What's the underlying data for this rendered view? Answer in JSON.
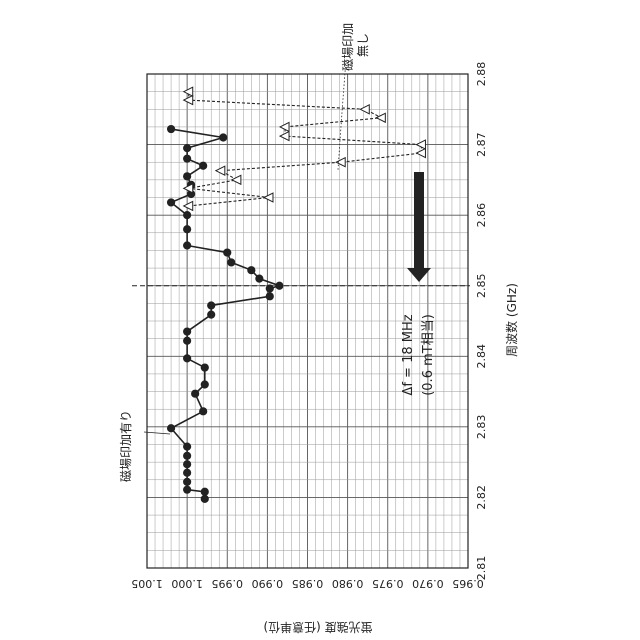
{
  "chart_data": {
    "type": "scatter",
    "xlabel": "周波数 (GHz)",
    "ylabel": "蛍光強度 (任意単位)",
    "xlim": [
      2.81,
      2.88
    ],
    "ylim": [
      0.965,
      1.005
    ],
    "x_ticks": [
      "2.81",
      "2.82",
      "2.83",
      "2.84",
      "2.85",
      "2.86",
      "2.87",
      "2.88"
    ],
    "y_ticks": [
      "1.005",
      "1.000",
      "0.995",
      "0.990",
      "0.985",
      "0.980",
      "0.975",
      "0.970",
      "0.965"
    ],
    "x_tick_values": [
      2.81,
      2.82,
      2.83,
      2.84,
      2.85,
      2.86,
      2.87,
      2.88
    ],
    "y_tick_values": [
      1.005,
      1.0,
      0.995,
      0.99,
      0.985,
      0.98,
      0.975,
      0.97,
      0.965
    ],
    "dip_frequency": 2.85,
    "shift_annotation": [
      "Δf = 18 MHz",
      "(0.6 mT相当)"
    ],
    "series": [
      {
        "name": "磁場印加有り",
        "marker": "filled-circle",
        "line": "solid",
        "color": "#222222",
        "x": [
          2.8198,
          2.8208,
          2.8211,
          2.8222,
          2.8235,
          2.8247,
          2.8259,
          2.8272,
          2.8298,
          2.8322,
          2.8347,
          2.836,
          2.8384,
          2.8397,
          2.8422,
          2.8435,
          2.8459,
          2.8472,
          2.8485,
          2.8496,
          2.85,
          2.851,
          2.8522,
          2.8533,
          2.8547,
          2.8557,
          2.858,
          2.86,
          2.8618,
          2.863,
          2.8643,
          2.8655,
          2.867,
          2.868,
          2.8695,
          2.871,
          2.8722
        ],
        "y": [
          0.9978,
          0.9978,
          1.0,
          1.0,
          1.0,
          1.0,
          1.0,
          1.0,
          1.002,
          0.998,
          0.999,
          0.9978,
          0.9978,
          1.0,
          1.0,
          1.0,
          0.997,
          0.997,
          0.9897,
          0.9897,
          0.9885,
          0.991,
          0.992,
          0.9945,
          0.995,
          1.0,
          1.0,
          1.0,
          1.002,
          0.9995,
          0.9995,
          1.0,
          0.998,
          1.0,
          1.0,
          0.9955,
          1.002
        ]
      },
      {
        "name": "磁場印加無し",
        "marker": "open-triangle",
        "line": "dashed",
        "color": "#222222",
        "x": [
          2.8613,
          2.8625,
          2.8638,
          2.865,
          2.8663,
          2.8675,
          2.8688,
          2.87,
          2.8712,
          2.8725,
          2.8738,
          2.875,
          2.8763,
          2.8775
        ],
        "y": [
          0.9998,
          0.9898,
          0.9998,
          0.9938,
          0.9958,
          0.9808,
          0.9708,
          0.9708,
          0.9878,
          0.9878,
          0.9758,
          0.9778,
          0.9998,
          0.9998
        ]
      }
    ]
  }
}
